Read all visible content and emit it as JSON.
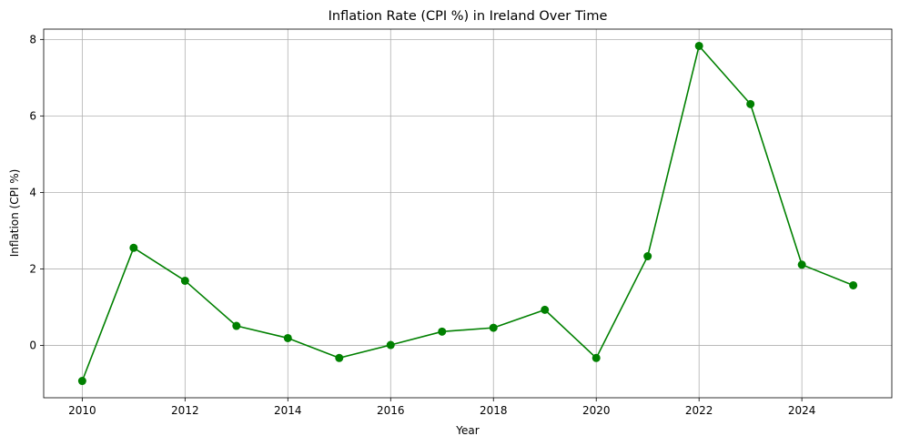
{
  "chart_data": {
    "type": "line",
    "title": "Inflation Rate (CPI %) in Ireland Over Time",
    "xlabel": "Year",
    "ylabel": "Inflation (CPI %)",
    "x": [
      2010,
      2011,
      2012,
      2013,
      2014,
      2015,
      2016,
      2017,
      2018,
      2019,
      2020,
      2021,
      2022,
      2023,
      2024,
      2025
    ],
    "series": [
      {
        "values": [
          -0.93,
          2.55,
          1.69,
          0.51,
          0.19,
          -0.33,
          0.01,
          0.36,
          0.46,
          0.93,
          -0.33,
          2.33,
          7.83,
          6.31,
          2.11,
          1.57
        ],
        "color": "#008000",
        "marker": "circle"
      }
    ],
    "xlim": [
      2009.25,
      2025.75
    ],
    "ylim": [
      -1.37,
      8.27
    ],
    "xticks": [
      2010,
      2012,
      2014,
      2016,
      2018,
      2020,
      2022,
      2024
    ],
    "yticks": [
      0,
      2,
      4,
      6,
      8
    ],
    "grid": true,
    "legend": "none"
  }
}
